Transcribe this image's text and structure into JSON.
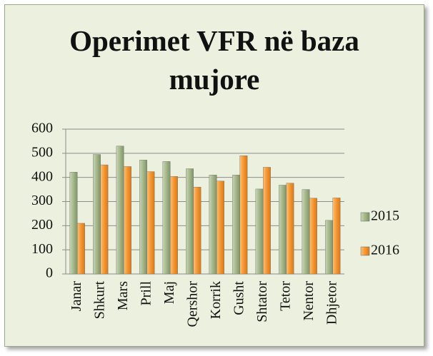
{
  "chart_data": {
    "type": "bar",
    "title": "Operimet VFR në baza mujore",
    "categories": [
      "Janar",
      "Shkurt",
      "Mars",
      "Prill",
      "Maj",
      "Qershor",
      "Korrik",
      "Gusht",
      "Shtator",
      "Tetor",
      "Nentor",
      "Dhjetor"
    ],
    "series": [
      {
        "name": "2015",
        "color": "#a3b68a",
        "values": [
          422,
          495,
          530,
          472,
          466,
          436,
          410,
          410,
          352,
          368,
          350,
          222
        ]
      },
      {
        "name": "2016",
        "color": "#f5962f",
        "values": [
          210,
          452,
          445,
          424,
          404,
          360,
          385,
          490,
          442,
          376,
          314,
          315
        ]
      }
    ],
    "ylim": [
      0,
      600
    ],
    "yticks": [
      0,
      100,
      200,
      300,
      400,
      500,
      600
    ],
    "grid": true,
    "legend": "right"
  }
}
